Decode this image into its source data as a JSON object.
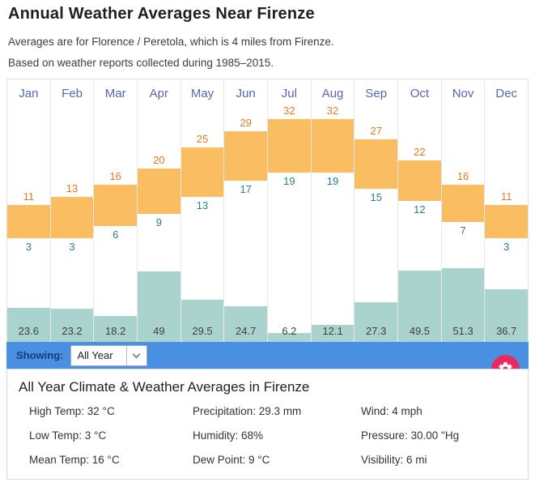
{
  "page": {
    "title": "Annual Weather Averages Near Firenze",
    "subtitle1": "Averages are for Florence / Peretola, which is 4 miles from Firenze.",
    "subtitle2": "Based on weather reports collected during 1985–2015."
  },
  "chart_data": {
    "type": "bar",
    "title": "Annual Weather Averages Near Firenze",
    "categories": [
      "Jan",
      "Feb",
      "Mar",
      "Apr",
      "May",
      "Jun",
      "Jul",
      "Aug",
      "Sep",
      "Oct",
      "Nov",
      "Dec"
    ],
    "series": [
      {
        "name": "High Temp",
        "unit": "°C",
        "values": [
          11,
          13,
          16,
          20,
          25,
          29,
          32,
          32,
          27,
          22,
          16,
          11
        ]
      },
      {
        "name": "Low Temp",
        "unit": "°C",
        "values": [
          3,
          3,
          6,
          9,
          13,
          17,
          19,
          19,
          15,
          12,
          7,
          3
        ]
      },
      {
        "name": "Precipitation",
        "unit": "mm",
        "values": [
          23.6,
          23.2,
          18.2,
          49,
          29.5,
          24.7,
          6.2,
          12.1,
          27.3,
          49.5,
          51.3,
          36.7
        ]
      }
    ],
    "legend": "none",
    "grid": "off",
    "colors": {
      "high_bar": "#FABD62",
      "high_label": "#E5791F",
      "low_label": "#26808F",
      "precip_bar": "#AAD3CE",
      "precip_label": "#3F3F3F",
      "month_label": "#5766B2"
    }
  },
  "showing": {
    "label": "Showing:",
    "selected": "All Year",
    "bar_bg": "#4A90E2",
    "label_color": "#1C3C74"
  },
  "settings": {
    "gear_bg": "#ED2760",
    "gear_glyph": "#FFFFFF"
  },
  "summary": {
    "heading": "All Year Climate & Weather Averages in Firenze",
    "columns": [
      {
        "items": [
          {
            "label": "High Temp",
            "value": "32 °C"
          },
          {
            "label": "Low Temp",
            "value": "3 °C"
          },
          {
            "label": "Mean Temp",
            "value": "16 °C"
          }
        ]
      },
      {
        "items": [
          {
            "label": "Precipitation",
            "value": "29.3 mm"
          },
          {
            "label": "Humidity",
            "value": "68%"
          },
          {
            "label": "Dew Point",
            "value": "9 °C"
          }
        ]
      },
      {
        "items": [
          {
            "label": "Wind",
            "value": "4 mph"
          },
          {
            "label": "Pressure",
            "value": "30.00 \"Hg"
          },
          {
            "label": "Visibility",
            "value": "6 mi"
          }
        ]
      }
    ]
  }
}
